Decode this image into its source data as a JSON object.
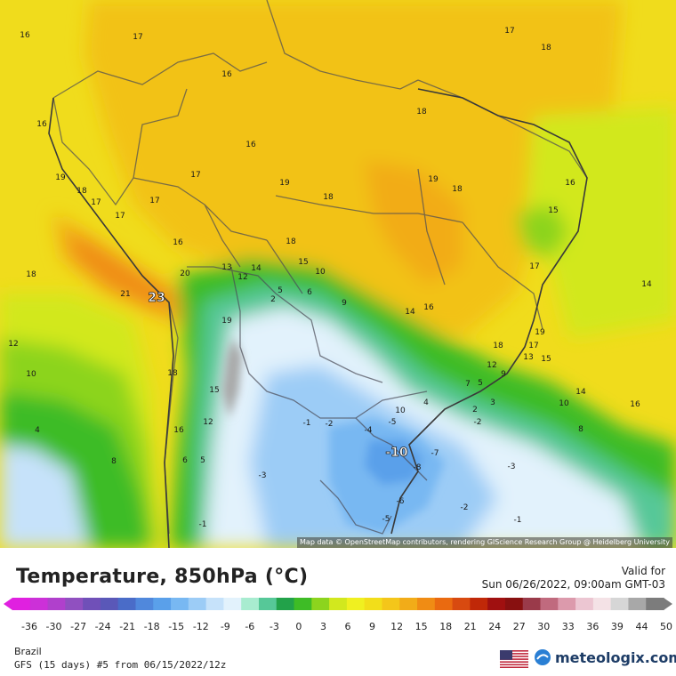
{
  "map": {
    "attribution": "Map data © OpenStreetMap contributors, rendering GIScience Research Group @ Heidelberg University",
    "labels": [
      {
        "text": "16"
      },
      {
        "text": "17"
      },
      {
        "text": "16"
      },
      {
        "text": "17"
      },
      {
        "text": "18"
      },
      {
        "text": "16"
      },
      {
        "text": "18"
      },
      {
        "text": "16"
      },
      {
        "text": "17"
      },
      {
        "text": "19"
      },
      {
        "text": "18"
      },
      {
        "text": "19"
      },
      {
        "text": "18"
      },
      {
        "text": "16"
      },
      {
        "text": "19"
      },
      {
        "text": "17"
      },
      {
        "text": "18"
      },
      {
        "text": "17"
      },
      {
        "text": "17"
      },
      {
        "text": "15"
      },
      {
        "text": "16"
      },
      {
        "text": "18"
      },
      {
        "text": "13"
      },
      {
        "text": "14"
      },
      {
        "text": "15"
      },
      {
        "text": "10"
      },
      {
        "text": "17"
      },
      {
        "text": "14"
      },
      {
        "text": "18"
      },
      {
        "text": "20"
      },
      {
        "text": "12"
      },
      {
        "text": "21"
      },
      {
        "text": "23"
      },
      {
        "text": "2"
      },
      {
        "text": "5"
      },
      {
        "text": "6"
      },
      {
        "text": "9"
      },
      {
        "text": "14"
      },
      {
        "text": "16"
      },
      {
        "text": "12"
      },
      {
        "text": "19"
      },
      {
        "text": "19"
      },
      {
        "text": "18"
      },
      {
        "text": "17"
      },
      {
        "text": "13"
      },
      {
        "text": "15"
      },
      {
        "text": "10"
      },
      {
        "text": "18"
      },
      {
        "text": "12"
      },
      {
        "text": "9"
      },
      {
        "text": "7"
      },
      {
        "text": "5"
      },
      {
        "text": "3"
      },
      {
        "text": "14"
      },
      {
        "text": "15"
      },
      {
        "text": "4"
      },
      {
        "text": "10"
      },
      {
        "text": "2"
      },
      {
        "text": "-2"
      },
      {
        "text": "10"
      },
      {
        "text": "16"
      },
      {
        "text": "12"
      },
      {
        "text": "-1"
      },
      {
        "text": "-2"
      },
      {
        "text": "-4"
      },
      {
        "text": "-5"
      },
      {
        "text": "8"
      },
      {
        "text": "4"
      },
      {
        "text": "16"
      },
      {
        "text": "-10"
      },
      {
        "text": "-7"
      },
      {
        "text": "-8"
      },
      {
        "text": "-3"
      },
      {
        "text": "8"
      },
      {
        "text": "6"
      },
      {
        "text": "5"
      },
      {
        "text": "-3"
      },
      {
        "text": "-6"
      },
      {
        "text": "-2"
      },
      {
        "text": "-5"
      },
      {
        "text": "-1"
      },
      {
        "text": "-1"
      }
    ]
  },
  "header": {
    "title": "Temperature, 850hPa (°C)",
    "valid_label": "Valid for",
    "valid_time": "Sun 06/26/2022, 09:00am GMT-03"
  },
  "colorbar": {
    "ticks": [
      "-36",
      "-30",
      "-27",
      "-24",
      "-21",
      "-18",
      "-15",
      "-12",
      "-9",
      "-6",
      "-3",
      "0",
      "3",
      "6",
      "9",
      "12",
      "15",
      "18",
      "21",
      "24",
      "27",
      "30",
      "33",
      "36",
      "39",
      "44",
      "50"
    ],
    "colors": [
      "#e020e0",
      "#cc30d8",
      "#b040cc",
      "#9050c0",
      "#7050b8",
      "#5a58b8",
      "#4a6cc8",
      "#5088dc",
      "#5aa0ea",
      "#78b8f2",
      "#9cccf6",
      "#c6e2fa",
      "#e2f2fc",
      "#a8ecd0",
      "#56c898",
      "#22a24a",
      "#3ebc26",
      "#8cd41e",
      "#d2e81e",
      "#f0f020",
      "#f2de1a",
      "#f4c61a",
      "#f2ac18",
      "#f08c14",
      "#ea6a10",
      "#d84a10",
      "#c02808",
      "#a01010",
      "#881010",
      "#9a3a4a",
      "#c06a7e",
      "#dc9aac",
      "#ecc6d2",
      "#f4e2e6",
      "#d6d6d6",
      "#a8a8a8",
      "#7c7c7c"
    ],
    "arrow_left_color": "#e020e0",
    "arrow_right_color": "#7c7c7c"
  },
  "footer": {
    "region": "Brazil",
    "model": "GFS (15 days) #5 from  06/15/2022/12z",
    "brand": "meteologix.com"
  }
}
